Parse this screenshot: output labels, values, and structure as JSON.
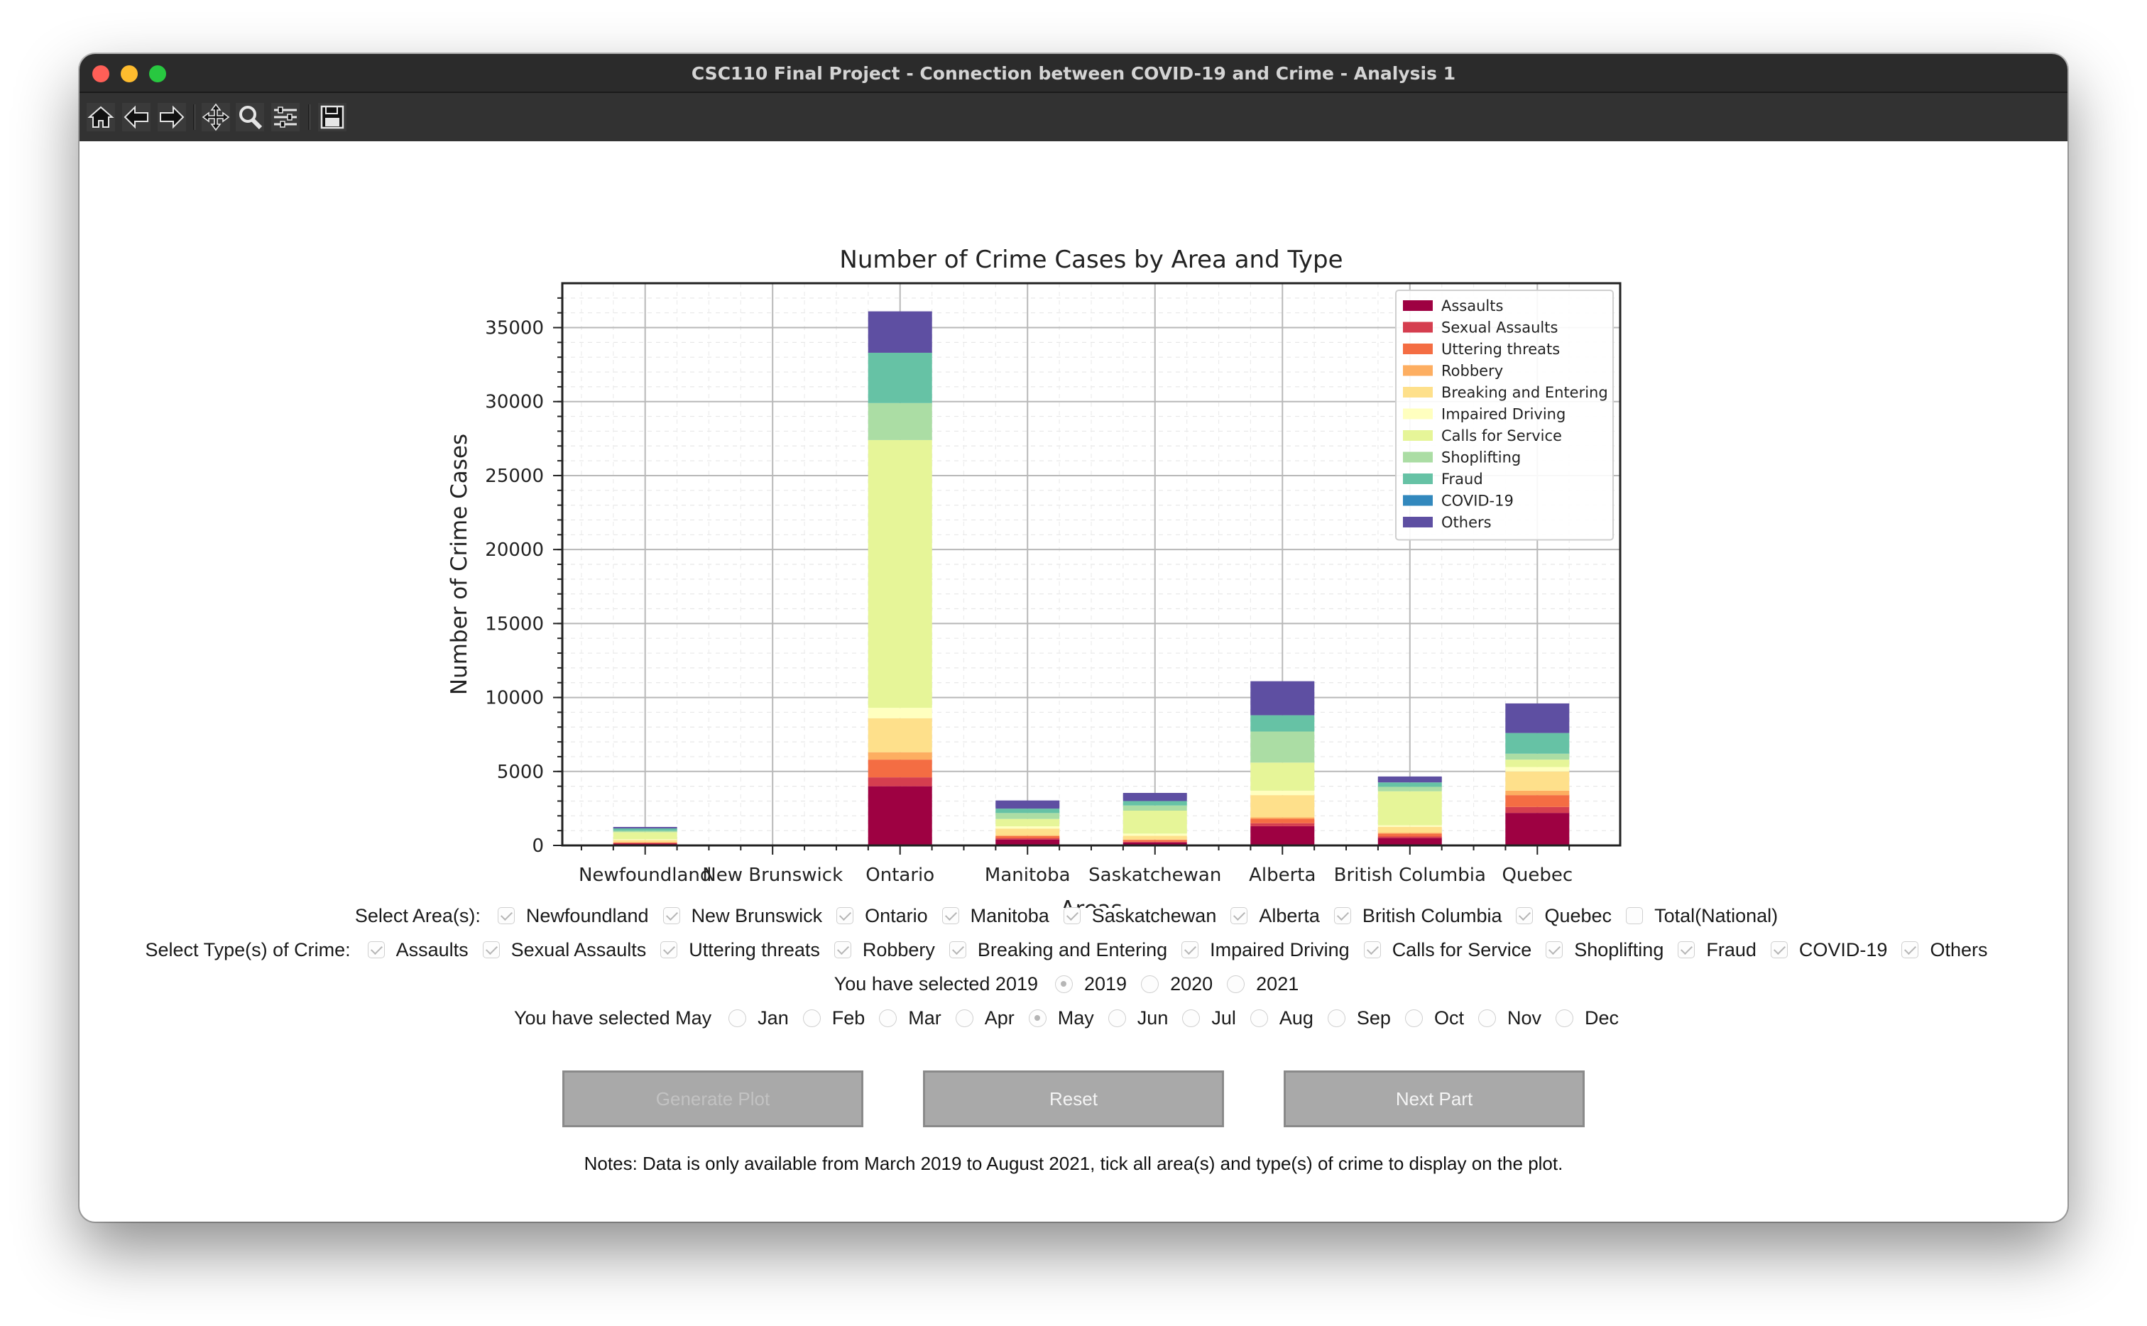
{
  "window": {
    "title": "CSC110 Final Project - Connection between COVID-19 and Crime - Analysis 1"
  },
  "toolbar": {
    "buttons": [
      "home-icon",
      "back-arrow-icon",
      "forward-arrow-icon",
      "pan-icon",
      "zoom-icon",
      "configure-subplots-icon",
      "save-icon"
    ]
  },
  "colors": {
    "Assaults": "#9e0142",
    "Sexual Assaults": "#d53e4f",
    "Uttering threats": "#f46d43",
    "Robbery": "#fdae61",
    "Breaking and Entering": "#fee08b",
    "Impaired Driving": "#ffffbf",
    "Calls for Service": "#e6f598",
    "Shoplifting": "#abdda4",
    "Fraud": "#66c2a5",
    "COVID-19": "#3288bd",
    "Others": "#5e4fa2"
  },
  "chart_data": {
    "type": "bar",
    "stacked": true,
    "title": "Number of Crime Cases by Area and Type",
    "xlabel": "Areas",
    "ylabel": "Number of Crime Cases",
    "categories": [
      "Newfoundland",
      "New Brunswick",
      "Ontario",
      "Manitoba",
      "Saskatchewan",
      "Alberta",
      "British Columbia",
      "Quebec"
    ],
    "ylim": [
      0,
      38000
    ],
    "yticks": [
      0,
      5000,
      10000,
      15000,
      20000,
      25000,
      30000,
      35000
    ],
    "grid": true,
    "legend_position": "top-right",
    "series": [
      {
        "name": "Assaults",
        "values": [
          120,
          0,
          4000,
          400,
          200,
          1300,
          500,
          2200
        ]
      },
      {
        "name": "Sexual Assaults",
        "values": [
          20,
          0,
          600,
          80,
          50,
          200,
          100,
          400
        ]
      },
      {
        "name": "Uttering threats",
        "values": [
          60,
          0,
          1200,
          150,
          120,
          300,
          200,
          800
        ]
      },
      {
        "name": "Robbery",
        "values": [
          20,
          0,
          500,
          60,
          30,
          100,
          60,
          300
        ]
      },
      {
        "name": "Breaking and Entering",
        "values": [
          150,
          0,
          2300,
          450,
          250,
          1500,
          400,
          1300
        ]
      },
      {
        "name": "Impaired Driving",
        "values": [
          50,
          0,
          700,
          150,
          150,
          300,
          100,
          300
        ]
      },
      {
        "name": "Calls for Service",
        "values": [
          480,
          0,
          18100,
          500,
          1550,
          1900,
          2300,
          500
        ]
      },
      {
        "name": "Shoplifting",
        "values": [
          90,
          0,
          2500,
          400,
          350,
          2100,
          300,
          400
        ]
      },
      {
        "name": "Fraud",
        "values": [
          160,
          0,
          3400,
          300,
          300,
          1100,
          300,
          1400
        ]
      },
      {
        "name": "COVID-19",
        "values": [
          0,
          0,
          0,
          0,
          0,
          0,
          0,
          0
        ]
      },
      {
        "name": "Others",
        "values": [
          100,
          0,
          2800,
          550,
          550,
          2300,
          400,
          2000
        ]
      }
    ]
  },
  "controls": {
    "areas_label": "Select Area(s):",
    "areas": [
      {
        "label": "Newfoundland",
        "checked": true
      },
      {
        "label": "New Brunswick",
        "checked": true
      },
      {
        "label": "Ontario",
        "checked": true
      },
      {
        "label": "Manitoba",
        "checked": true
      },
      {
        "label": "Saskatchewan",
        "checked": true
      },
      {
        "label": "Alberta",
        "checked": true
      },
      {
        "label": "British Columbia",
        "checked": true
      },
      {
        "label": "Quebec",
        "checked": true
      },
      {
        "label": "Total(National)",
        "checked": false
      }
    ],
    "types_label": "Select Type(s) of Crime:",
    "types": [
      {
        "label": "Assaults",
        "checked": true
      },
      {
        "label": "Sexual Assaults",
        "checked": true
      },
      {
        "label": "Uttering threats",
        "checked": true
      },
      {
        "label": "Robbery",
        "checked": true
      },
      {
        "label": "Breaking and Entering",
        "checked": true
      },
      {
        "label": "Impaired Driving",
        "checked": true
      },
      {
        "label": "Calls for Service",
        "checked": true
      },
      {
        "label": "Shoplifting",
        "checked": true
      },
      {
        "label": "Fraud",
        "checked": true
      },
      {
        "label": "COVID-19",
        "checked": true
      },
      {
        "label": "Others",
        "checked": true
      }
    ],
    "year_label": "You have selected 2019",
    "years": [
      {
        "label": "2019",
        "checked": true
      },
      {
        "label": "2020",
        "checked": false
      },
      {
        "label": "2021",
        "checked": false
      }
    ],
    "month_label": "You have selected May",
    "months": [
      {
        "label": "Jan",
        "checked": false
      },
      {
        "label": "Feb",
        "checked": false
      },
      {
        "label": "Mar",
        "checked": false
      },
      {
        "label": "Apr",
        "checked": false
      },
      {
        "label": "May",
        "checked": true
      },
      {
        "label": "Jun",
        "checked": false
      },
      {
        "label": "Jul",
        "checked": false
      },
      {
        "label": "Aug",
        "checked": false
      },
      {
        "label": "Sep",
        "checked": false
      },
      {
        "label": "Oct",
        "checked": false
      },
      {
        "label": "Nov",
        "checked": false
      },
      {
        "label": "Dec",
        "checked": false
      }
    ]
  },
  "buttons": {
    "generate": "Generate Plot",
    "reset": "Reset",
    "next": "Next Part"
  },
  "notes": "Notes: Data is only available from March 2019 to August 2021, tick all area(s) and type(s) of crime to display on the plot."
}
